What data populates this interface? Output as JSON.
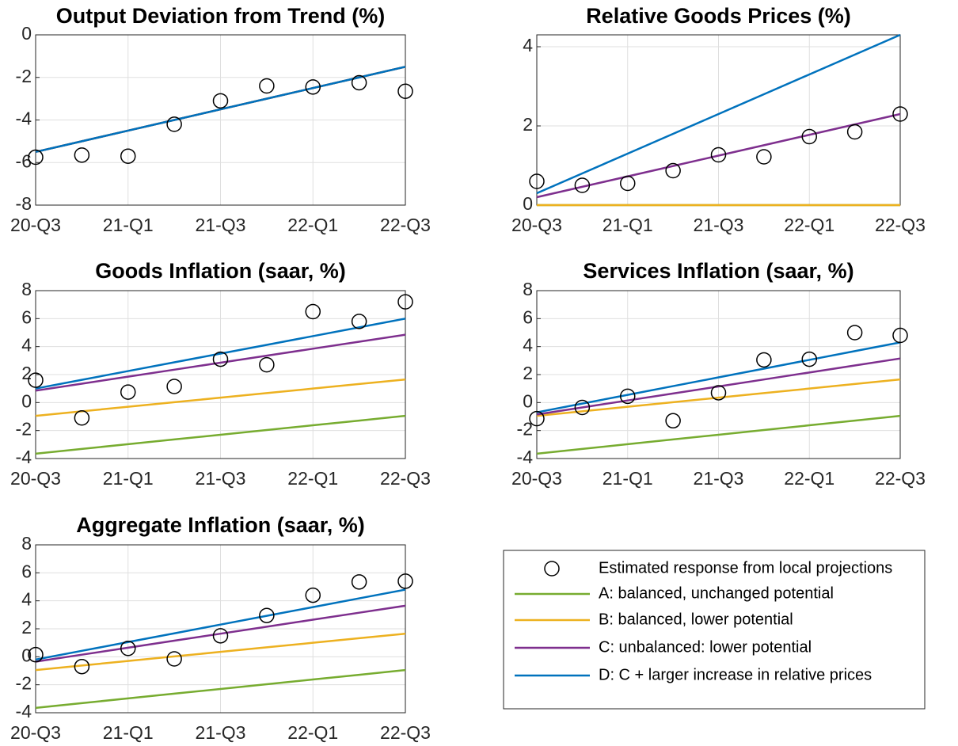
{
  "chart_data": [
    {
      "type": "line",
      "title": "Output Deviation from Trend (%)",
      "categories": [
        "20-Q3",
        null,
        "21-Q1",
        null,
        "21-Q3",
        null,
        "22-Q1",
        null,
        "22-Q3"
      ],
      "ylim": [
        -8,
        0
      ],
      "yticks": [
        -8,
        -6,
        -4,
        -2,
        0
      ],
      "grid": true,
      "series": [
        {
          "name": "Estimated response from local projections",
          "color": "#000000",
          "marker": "circle",
          "values": [
            -5.75,
            -5.65,
            -5.7,
            -4.2,
            -3.1,
            -2.4,
            -2.45,
            -2.25,
            -2.65
          ]
        },
        {
          "name": "A: balanced, unchanged potential",
          "color": "#77ac30",
          "values": [
            -5.5,
            -5,
            -4.5,
            -4,
            -3.5,
            -3,
            -2.5,
            -2,
            -1.5
          ]
        },
        {
          "name": "B: balanced, lower potential",
          "color": "#edb120",
          "values": [
            -5.5,
            -5,
            -4.5,
            -4,
            -3.5,
            -3,
            -2.5,
            -2,
            -1.5
          ]
        },
        {
          "name": "C: unbalanced: lower potential",
          "color": "#7e2f8e",
          "values": [
            -5.5,
            -5,
            -4.5,
            -4,
            -3.5,
            -3,
            -2.5,
            -2,
            -1.5
          ]
        },
        {
          "name": "D: C + larger increase in relative prices",
          "color": "#0072bd",
          "values": [
            -5.5,
            -5,
            -4.5,
            -4,
            -3.5,
            -3,
            -2.5,
            -2,
            -1.5
          ]
        }
      ]
    },
    {
      "type": "line",
      "title": "Relative Goods Prices (%)",
      "categories": [
        "20-Q3",
        null,
        "21-Q1",
        null,
        "21-Q3",
        null,
        "22-Q1",
        null,
        "22-Q3"
      ],
      "ylim": [
        0,
        4.3
      ],
      "yticks": [
        0,
        2,
        4
      ],
      "grid": true,
      "series": [
        {
          "color": "#000000",
          "marker": "circle",
          "values": [
            0.6,
            0.5,
            0.55,
            0.87,
            1.27,
            1.22,
            1.73,
            1.85,
            2.3
          ]
        },
        {
          "color": "#77ac30",
          "values": [
            0,
            0,
            0,
            0,
            0,
            0,
            0,
            0,
            0
          ]
        },
        {
          "color": "#edb120",
          "values": [
            0,
            0,
            0,
            0,
            0,
            0,
            0,
            0,
            0
          ]
        },
        {
          "color": "#7e2f8e",
          "values": [
            0.2,
            0.4625,
            0.725,
            0.9875,
            1.25,
            1.5125,
            1.775,
            2.0375,
            2.3
          ]
        },
        {
          "color": "#0072bd",
          "values": [
            0.3,
            0.8,
            1.3,
            1.8,
            2.3,
            2.8,
            3.3,
            3.8,
            4.3
          ]
        }
      ]
    },
    {
      "type": "line",
      "title": "Goods Inflation (saar, %)",
      "categories": [
        "20-Q3",
        null,
        "21-Q1",
        null,
        "21-Q3",
        null,
        "22-Q1",
        null,
        "22-Q3"
      ],
      "ylim": [
        -4,
        8
      ],
      "yticks": [
        -4,
        -2,
        0,
        2,
        4,
        6,
        8
      ],
      "grid": true,
      "series": [
        {
          "color": "#000000",
          "marker": "circle",
          "values": [
            1.6,
            -1.1,
            0.75,
            1.15,
            3.1,
            2.7,
            6.5,
            5.8,
            7.2
          ]
        },
        {
          "color": "#77ac30",
          "values": [
            -3.65,
            -3.3125,
            -2.975,
            -2.6375,
            -2.3,
            -1.9625,
            -1.625,
            -1.2875,
            -0.95
          ]
        },
        {
          "color": "#edb120",
          "values": [
            -0.95,
            -0.625,
            -0.3,
            0.025,
            0.35,
            0.675,
            1.0,
            1.325,
            1.65
          ]
        },
        {
          "color": "#7e2f8e",
          "values": [
            0.85,
            1.35,
            1.85,
            2.35,
            2.85,
            3.35,
            3.85,
            4.35,
            4.85
          ]
        },
        {
          "color": "#0072bd",
          "values": [
            1.0,
            1.625,
            2.25,
            2.875,
            3.5,
            4.125,
            4.75,
            5.375,
            6.0
          ]
        }
      ]
    },
    {
      "type": "line",
      "title": "Services Inflation (saar, %)",
      "categories": [
        "20-Q3",
        null,
        "21-Q1",
        null,
        "21-Q3",
        null,
        "22-Q1",
        null,
        "22-Q3"
      ],
      "ylim": [
        -4,
        8
      ],
      "yticks": [
        -4,
        -2,
        0,
        2,
        4,
        6,
        8
      ],
      "grid": true,
      "series": [
        {
          "color": "#000000",
          "marker": "circle",
          "values": [
            -1.15,
            -0.35,
            0.45,
            -1.3,
            0.7,
            3.05,
            3.1,
            5.0,
            4.8
          ]
        },
        {
          "color": "#77ac30",
          "values": [
            -3.65,
            -3.3125,
            -2.975,
            -2.6375,
            -2.3,
            -1.9625,
            -1.625,
            -1.2875,
            -0.95
          ]
        },
        {
          "color": "#edb120",
          "values": [
            -0.95,
            -0.625,
            -0.3,
            0.025,
            0.35,
            0.675,
            1.0,
            1.325,
            1.65
          ]
        },
        {
          "color": "#7e2f8e",
          "values": [
            -0.85,
            -0.35,
            0.15,
            0.65,
            1.15,
            1.65,
            2.15,
            2.65,
            3.15
          ]
        },
        {
          "color": "#0072bd",
          "values": [
            -0.7,
            -0.075,
            0.55,
            1.175,
            1.8,
            2.425,
            3.05,
            3.675,
            4.3
          ]
        }
      ]
    },
    {
      "type": "line",
      "title": "Aggregate Inflation (saar, %)",
      "categories": [
        "20-Q3",
        null,
        "21-Q1",
        null,
        "21-Q3",
        null,
        "22-Q1",
        null,
        "22-Q3"
      ],
      "ylim": [
        -4,
        8
      ],
      "yticks": [
        -4,
        -2,
        0,
        2,
        4,
        6,
        8
      ],
      "grid": true,
      "series": [
        {
          "color": "#000000",
          "marker": "circle",
          "values": [
            0.15,
            -0.7,
            0.6,
            -0.15,
            1.5,
            2.95,
            4.4,
            5.35,
            5.4
          ]
        },
        {
          "color": "#77ac30",
          "values": [
            -3.65,
            -3.3125,
            -2.975,
            -2.6375,
            -2.3,
            -1.9625,
            -1.625,
            -1.2875,
            -0.95
          ]
        },
        {
          "color": "#edb120",
          "values": [
            -0.95,
            -0.625,
            -0.3,
            0.025,
            0.35,
            0.675,
            1.0,
            1.325,
            1.65
          ]
        },
        {
          "color": "#7e2f8e",
          "values": [
            -0.35,
            0.15,
            0.65,
            1.15,
            1.65,
            2.15,
            2.65,
            3.15,
            3.65
          ]
        },
        {
          "color": "#0072bd",
          "values": [
            -0.2,
            0.425,
            1.05,
            1.675,
            2.3,
            2.925,
            3.55,
            4.175,
            4.8
          ]
        }
      ]
    }
  ]
}
